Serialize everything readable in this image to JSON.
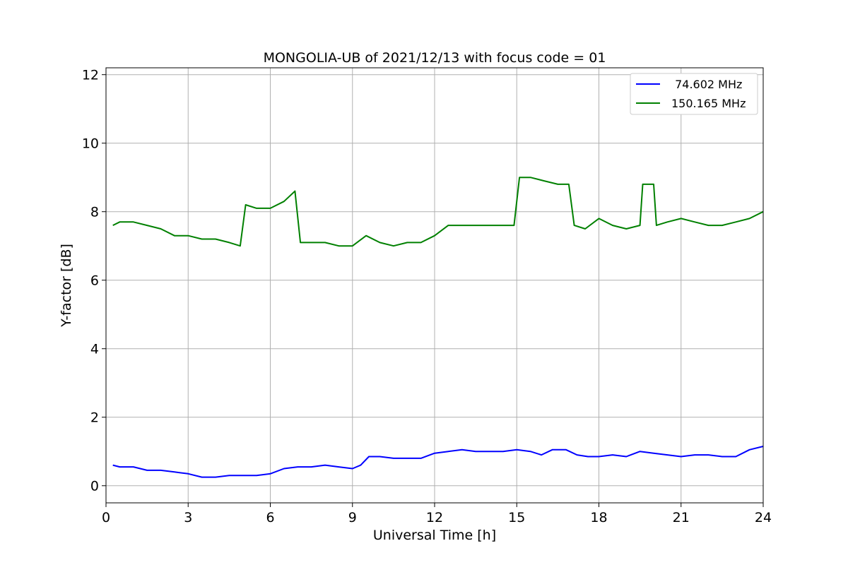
{
  "chart_data": {
    "type": "line",
    "title": "MONGOLIA-UB of 2021/12/13 with focus code = 01",
    "xlabel": "Universal Time [h]",
    "ylabel": "Y-factor [dB]",
    "xlim": [
      0,
      24
    ],
    "ylim": [
      -0.5,
      12.2
    ],
    "xticks": [
      0,
      3,
      6,
      9,
      12,
      15,
      18,
      21,
      24
    ],
    "yticks": [
      0,
      2,
      4,
      6,
      8,
      10,
      12
    ],
    "grid": true,
    "legend_position": "top-right",
    "series": [
      {
        "name": " 74.602 MHz",
        "color": "#0000ff",
        "x": [
          0.25,
          0.5,
          1.0,
          1.5,
          2.0,
          2.5,
          3.0,
          3.5,
          4.0,
          4.5,
          5.0,
          5.5,
          6.0,
          6.5,
          7.0,
          7.5,
          8.0,
          8.5,
          9.0,
          9.3,
          9.6,
          10.0,
          10.5,
          11.0,
          11.5,
          12.0,
          12.5,
          13.0,
          13.5,
          14.0,
          14.5,
          15.0,
          15.5,
          15.9,
          16.3,
          16.8,
          17.2,
          17.6,
          18.0,
          18.5,
          19.0,
          19.5,
          20.0,
          20.5,
          21.0,
          21.5,
          22.0,
          22.5,
          23.0,
          23.5,
          24.0
        ],
        "values": [
          0.6,
          0.55,
          0.55,
          0.45,
          0.45,
          0.4,
          0.35,
          0.25,
          0.25,
          0.3,
          0.3,
          0.3,
          0.35,
          0.5,
          0.55,
          0.55,
          0.6,
          0.55,
          0.5,
          0.6,
          0.85,
          0.85,
          0.8,
          0.8,
          0.8,
          0.95,
          1.0,
          1.05,
          1.0,
          1.0,
          1.0,
          1.05,
          1.0,
          0.9,
          1.05,
          1.05,
          0.9,
          0.85,
          0.85,
          0.9,
          0.85,
          1.0,
          0.95,
          0.9,
          0.85,
          0.9,
          0.9,
          0.85,
          0.85,
          1.05,
          1.15
        ]
      },
      {
        "name": "150.165 MHz",
        "color": "#008000",
        "x": [
          0.25,
          0.5,
          1.0,
          1.5,
          2.0,
          2.5,
          3.0,
          3.5,
          4.0,
          4.5,
          4.9,
          5.1,
          5.5,
          6.0,
          6.5,
          6.9,
          7.1,
          7.5,
          8.0,
          8.5,
          9.0,
          9.5,
          10.0,
          10.5,
          11.0,
          11.5,
          12.0,
          12.5,
          13.0,
          13.5,
          14.0,
          14.5,
          14.9,
          15.1,
          15.5,
          16.0,
          16.5,
          16.9,
          17.1,
          17.5,
          18.0,
          18.5,
          19.0,
          19.5,
          19.6,
          20.0,
          20.1,
          20.5,
          21.0,
          21.5,
          22.0,
          22.5,
          23.0,
          23.5,
          24.0
        ],
        "values": [
          7.6,
          7.7,
          7.7,
          7.6,
          7.5,
          7.3,
          7.3,
          7.2,
          7.2,
          7.1,
          7.0,
          8.2,
          8.1,
          8.1,
          8.3,
          8.6,
          7.1,
          7.1,
          7.1,
          7.0,
          7.0,
          7.3,
          7.1,
          7.0,
          7.1,
          7.1,
          7.3,
          7.6,
          7.6,
          7.6,
          7.6,
          7.6,
          7.6,
          9.0,
          9.0,
          8.9,
          8.8,
          8.8,
          7.6,
          7.5,
          7.8,
          7.6,
          7.5,
          7.6,
          8.8,
          8.8,
          7.6,
          7.7,
          7.8,
          7.7,
          7.6,
          7.6,
          7.7,
          7.8,
          8.0
        ]
      }
    ]
  }
}
